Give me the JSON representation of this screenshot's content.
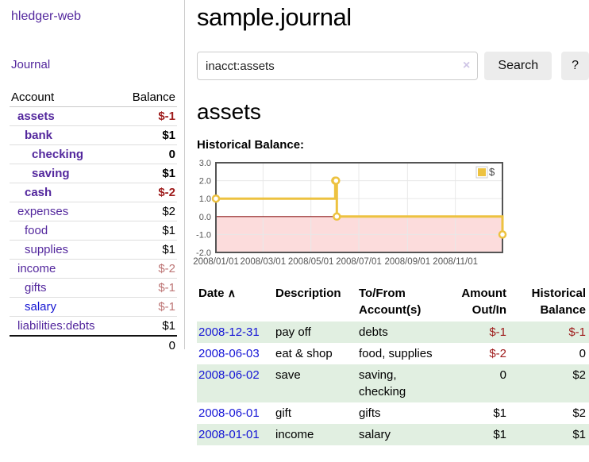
{
  "sidebar": {
    "brand": "hledger-web",
    "journal_link": "Journal",
    "accounts": {
      "header_account": "Account",
      "header_balance": "Balance",
      "rows": [
        {
          "name": "assets",
          "balance": "$-1",
          "level": 1,
          "emph": true,
          "neg": true,
          "unvisited": false
        },
        {
          "name": "bank",
          "balance": "$1",
          "level": 2,
          "emph": true,
          "neg": false,
          "unvisited": false
        },
        {
          "name": "checking",
          "balance": "0",
          "level": 3,
          "emph": true,
          "neg": false,
          "unvisited": false
        },
        {
          "name": "saving",
          "balance": "$1",
          "level": 3,
          "emph": true,
          "neg": false,
          "unvisited": false
        },
        {
          "name": "cash",
          "balance": "$-2",
          "level": 2,
          "emph": true,
          "neg": true,
          "unvisited": false
        },
        {
          "name": "expenses",
          "balance": "$2",
          "level": 1,
          "emph": false,
          "neg": false,
          "unvisited": false
        },
        {
          "name": "food",
          "balance": "$1",
          "level": 2,
          "emph": false,
          "neg": false,
          "unvisited": false
        },
        {
          "name": "supplies",
          "balance": "$1",
          "level": 2,
          "emph": false,
          "neg": false,
          "unvisited": false
        },
        {
          "name": "income",
          "balance": "$-2",
          "level": 1,
          "emph": false,
          "neg": true,
          "unvisited": false
        },
        {
          "name": "gifts",
          "balance": "$-1",
          "level": 2,
          "emph": false,
          "neg": true,
          "unvisited": false
        },
        {
          "name": "salary",
          "balance": "$-1",
          "level": 2,
          "emph": false,
          "neg": true,
          "unvisited": true
        },
        {
          "name": "liabilities:debts",
          "balance": "$1",
          "level": 1,
          "emph": false,
          "neg": false,
          "unvisited": false
        }
      ],
      "total": "0"
    }
  },
  "header": {
    "title": "sample.journal"
  },
  "search": {
    "value": "inacct:assets",
    "clear_icon": "×",
    "button_label": "Search",
    "help_label": "?"
  },
  "account_page": {
    "heading": "assets",
    "chart_label": "Historical Balance:"
  },
  "chart_data": {
    "type": "line",
    "step": true,
    "title": "Historical Balance",
    "series": [
      {
        "name": "$",
        "color": "#edc240",
        "points": [
          {
            "date": "2008-01-01",
            "value": 1
          },
          {
            "date": "2008-06-01",
            "value": 2
          },
          {
            "date": "2008-06-02",
            "value": 2
          },
          {
            "date": "2008-06-03",
            "value": 0
          },
          {
            "date": "2008-12-31",
            "value": -1
          }
        ]
      }
    ],
    "xlim": [
      "2008-01-01",
      "2008-12-31"
    ],
    "ylim": [
      -2,
      3
    ],
    "yticks": [
      3,
      2,
      1,
      0,
      -1,
      -2
    ],
    "ytick_labels": [
      "3.0",
      "2.0",
      "1.0",
      "0.0",
      "-1.0",
      "-2.0"
    ],
    "xticks": [
      "2008-01-01",
      "2008-03-01",
      "2008-05-01",
      "2008-07-01",
      "2008-09-01",
      "2008-11-01"
    ],
    "xtick_labels": [
      "2008/01/01",
      "2008/03/01",
      "2008/05/01",
      "2008/07/01",
      "2008/09/01",
      "2008/11/01"
    ],
    "legend": {
      "label": "$",
      "position": "top-right"
    },
    "grid": true
  },
  "transactions": {
    "sort_icon": "∧",
    "headers": {
      "date": "Date",
      "description": "Description",
      "accounts": "To/From Account(s)",
      "amount": "Amount Out/In",
      "balance": "Historical Balance"
    },
    "rows": [
      {
        "date": "2008-12-31",
        "description": "pay off",
        "accounts": "debts",
        "amount": "$-1",
        "balance": "$-1",
        "amount_neg": true,
        "balance_neg": true
      },
      {
        "date": "2008-06-03",
        "description": "eat & shop",
        "accounts": "food, supplies",
        "amount": "$-2",
        "balance": "0",
        "amount_neg": true,
        "balance_neg": false
      },
      {
        "date": "2008-06-02",
        "description": "save",
        "accounts": "saving, checking",
        "amount": "0",
        "balance": "$2",
        "amount_neg": false,
        "balance_neg": false
      },
      {
        "date": "2008-06-01",
        "description": "gift",
        "accounts": "gifts",
        "amount": "$1",
        "balance": "$2",
        "amount_neg": false,
        "balance_neg": false
      },
      {
        "date": "2008-01-01",
        "description": "income",
        "accounts": "salary",
        "amount": "$1",
        "balance": "$1",
        "amount_neg": false,
        "balance_neg": false
      }
    ]
  },
  "colors": {
    "link_purple": "#53279d",
    "link_blue": "#1414d2",
    "negative_strong": "#9e1b1b",
    "negative_soft": "#bd7575",
    "row_green": "#e1efe1",
    "chart_series_yellow": "#edc240",
    "chart_negative_fill": "#fcdcdc",
    "chart_zero_line": "#8f1d1d",
    "chart_border": "#545454",
    "chart_grid": "#e8e8e8"
  }
}
